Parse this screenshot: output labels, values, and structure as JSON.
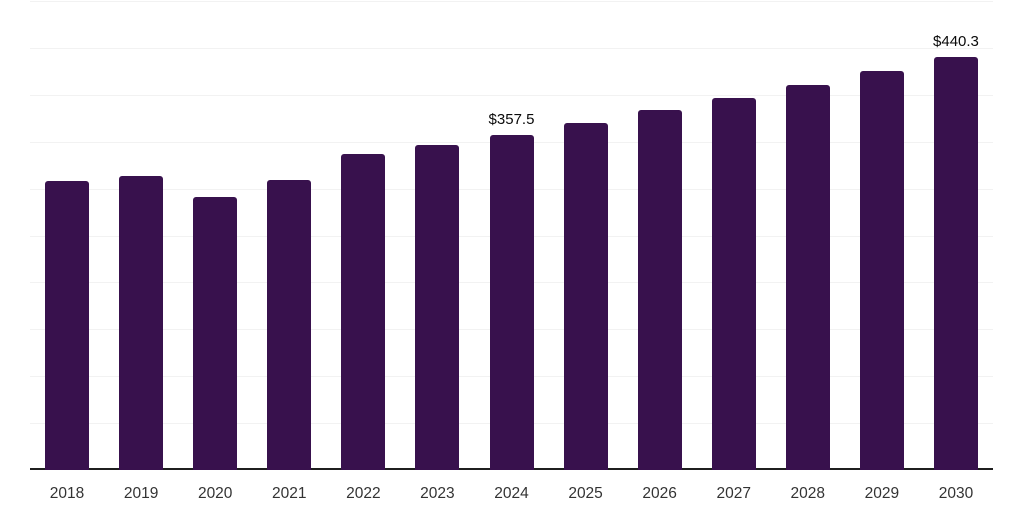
{
  "chart_data": {
    "type": "bar",
    "title": "",
    "xlabel": "",
    "ylabel": "",
    "categories": [
      "2018",
      "2019",
      "2020",
      "2021",
      "2022",
      "2023",
      "2024",
      "2025",
      "2026",
      "2027",
      "2028",
      "2029",
      "2030"
    ],
    "values": [
      308.1,
      313.0,
      291.3,
      309.7,
      336.6,
      346.2,
      357.5,
      370.2,
      383.3,
      396.8,
      410.9,
      425.4,
      440.3
    ],
    "point_labels": [
      "",
      "",
      "",
      "",
      "",
      "",
      "$357.5",
      "",
      "",
      "",
      "",
      "",
      "$440.3"
    ],
    "ylim": [
      0,
      500
    ],
    "y_gridline_interval": 50,
    "grid": "horizontal",
    "legend": "none",
    "y_axis_tick_labels_visible": false,
    "colors": {
      "bar": "#38114d",
      "gridline": "#f2f2f2",
      "axis_line": "#1f1f1f",
      "data_label": "#0a0a0a",
      "tick_label": "#333333",
      "background": "#ffffff"
    }
  }
}
